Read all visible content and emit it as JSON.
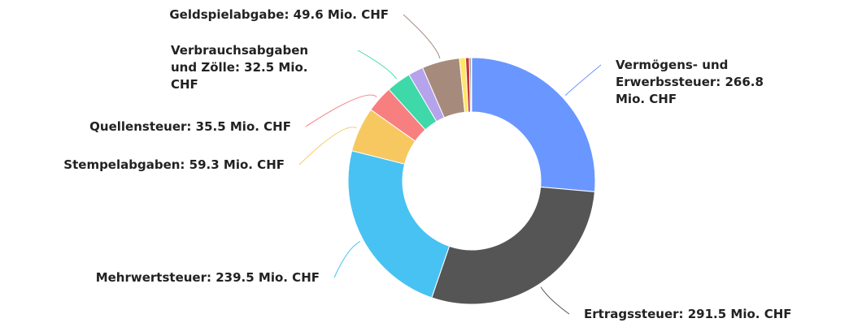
{
  "chart_data": {
    "type": "donut",
    "categories": [
      "Vermögens- und Erwerbssteuer: 266.8 Mio. CHF",
      "Ertragssteuer: 291.5 Mio. CHF",
      "Mehrwertsteuer: 239.5 Mio. CHF",
      "Stempelabgaben: 59.3 Mio. CHF",
      "Quellensteuer: 35.5 Mio. CHF",
      "Verbrauchsabgaben und Zölle: 32.5 Mio. CHF",
      null,
      "Geldspielabgabe: 49.6 Mio. CHF",
      null,
      null,
      null,
      null
    ],
    "values": [
      266.8,
      291.5,
      239.5,
      59.3,
      35.5,
      32.5,
      20,
      49.6,
      8,
      5,
      2,
      1
    ],
    "colors": [
      "#6a97ff",
      "#555555",
      "#48c2f2",
      "#f6c85f",
      "#f87f80",
      "#3fd8a8",
      "#b5a3ec",
      "#a68b7d",
      "#ffe766",
      "#c23a3a",
      "#4a4a4a",
      "#7aae7a"
    ]
  }
}
